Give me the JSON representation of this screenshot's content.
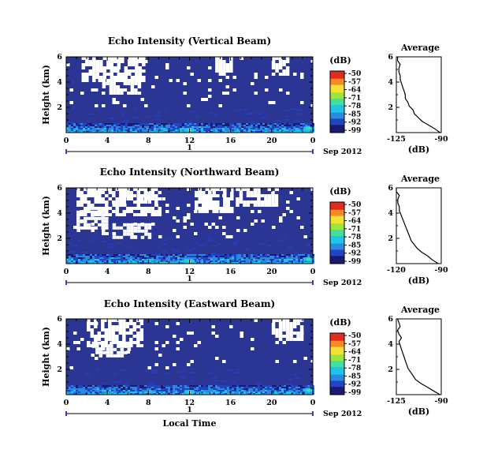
{
  "page": {
    "background": "#ffffff"
  },
  "chart_data": [
    {
      "id": "vertical",
      "type": "heatmap",
      "title": "Echo Intensity (Vertical Beam)",
      "ylabel": "Height (km)",
      "x_ticks": [
        "0",
        "4",
        "8",
        "12",
        "16",
        "20",
        "0"
      ],
      "y_ticks": [
        "6",
        "4",
        "2"
      ],
      "xlim": [
        0,
        24
      ],
      "ylim": [
        0,
        6
      ],
      "day_label": "1",
      "date_label": "Sep 2012",
      "colorbar": {
        "unit": "(dB)",
        "ticks": [
          "-50",
          "-57",
          "-64",
          "-71",
          "-78",
          "-85",
          "-92",
          "-99"
        ]
      },
      "average": {
        "title": "Average",
        "xlabel": "(dB)",
        "x_ticks": [
          "-125",
          "-90"
        ],
        "y_ticks": [
          "6",
          "4",
          "2"
        ],
        "profile": [
          [
            0.0,
            -91
          ],
          [
            0.3,
            -95
          ],
          [
            0.6,
            -100
          ],
          [
            0.9,
            -105
          ],
          [
            1.2,
            -108
          ],
          [
            1.5,
            -111
          ],
          [
            1.8,
            -112
          ],
          [
            2.1,
            -115
          ],
          [
            2.4,
            -116
          ],
          [
            2.7,
            -118
          ],
          [
            3.0,
            -118
          ],
          [
            3.3,
            -119
          ],
          [
            3.6,
            -120
          ],
          [
            3.9,
            -121
          ],
          [
            4.2,
            -122
          ],
          [
            4.5,
            -122
          ],
          [
            4.8,
            -123
          ],
          [
            5.1,
            -123
          ],
          [
            5.4,
            -122
          ],
          [
            5.7,
            -124
          ],
          [
            6.0,
            -124
          ]
        ]
      }
    },
    {
      "id": "northward",
      "type": "heatmap",
      "title": "Echo Intensity (Northward Beam)",
      "ylabel": "Height (km)",
      "x_ticks": [
        "0",
        "4",
        "8",
        "12",
        "16",
        "20",
        "0"
      ],
      "y_ticks": [
        "6",
        "4",
        "2"
      ],
      "xlim": [
        0,
        24
      ],
      "ylim": [
        0,
        6
      ],
      "day_label": "1",
      "date_label": "Sep 2012",
      "colorbar": {
        "unit": "(dB)",
        "ticks": [
          "-50",
          "-57",
          "-64",
          "-71",
          "-78",
          "-85",
          "-92",
          "-99"
        ]
      },
      "average": {
        "title": "Average",
        "xlabel": "(dB)",
        "x_ticks": [
          "-120",
          "-90"
        ],
        "y_ticks": [
          "6",
          "4",
          "2"
        ],
        "profile": [
          [
            0.0,
            -92
          ],
          [
            0.3,
            -96
          ],
          [
            0.6,
            -99
          ],
          [
            0.9,
            -103
          ],
          [
            1.2,
            -106
          ],
          [
            1.5,
            -108
          ],
          [
            1.8,
            -110
          ],
          [
            2.1,
            -111
          ],
          [
            2.4,
            -112
          ],
          [
            2.7,
            -113
          ],
          [
            3.0,
            -114
          ],
          [
            3.3,
            -115
          ],
          [
            3.6,
            -116
          ],
          [
            3.9,
            -117
          ],
          [
            4.2,
            -118
          ],
          [
            4.5,
            -118
          ],
          [
            4.8,
            -119
          ],
          [
            5.1,
            -119
          ],
          [
            5.4,
            -118
          ],
          [
            5.7,
            -120
          ],
          [
            6.0,
            -120
          ]
        ]
      }
    },
    {
      "id": "eastward",
      "type": "heatmap",
      "title": "Echo Intensity (Eastward Beam)",
      "ylabel": "Height (km)",
      "xlabel": "Local Time",
      "x_ticks": [
        "0",
        "4",
        "8",
        "12",
        "16",
        "20",
        "0"
      ],
      "y_ticks": [
        "6",
        "4",
        "2"
      ],
      "xlim": [
        0,
        24
      ],
      "ylim": [
        0,
        6
      ],
      "day_label": "1",
      "date_label": "Sep 2012",
      "colorbar": {
        "unit": "(dB)",
        "ticks": [
          "-50",
          "-57",
          "-64",
          "-71",
          "-78",
          "-85",
          "-92",
          "-99"
        ]
      },
      "average": {
        "title": "Average",
        "xlabel": "(dB)",
        "x_ticks": [
          "-125",
          "-90"
        ],
        "y_ticks": [
          "6",
          "4",
          "2"
        ],
        "profile": [
          [
            0.0,
            -91
          ],
          [
            0.3,
            -96
          ],
          [
            0.6,
            -101
          ],
          [
            0.9,
            -106
          ],
          [
            1.2,
            -110
          ],
          [
            1.5,
            -112
          ],
          [
            1.8,
            -114
          ],
          [
            2.1,
            -116
          ],
          [
            2.4,
            -117
          ],
          [
            2.7,
            -118
          ],
          [
            3.0,
            -119
          ],
          [
            3.3,
            -120
          ],
          [
            3.6,
            -121
          ],
          [
            3.9,
            -122
          ],
          [
            4.2,
            -123
          ],
          [
            4.5,
            -121
          ],
          [
            4.8,
            -123
          ],
          [
            5.1,
            -124
          ],
          [
            5.4,
            -122
          ],
          [
            5.7,
            -123
          ],
          [
            6.0,
            -124
          ]
        ]
      }
    }
  ],
  "colors": {
    "background_echo": "#2b3594",
    "colormap": [
      "#1a1a6e",
      "#2443c4",
      "#2b8ae0",
      "#21c4e8",
      "#3fe0a2",
      "#9ae640",
      "#f2e233",
      "#f58a24",
      "#e42a1d"
    ]
  }
}
